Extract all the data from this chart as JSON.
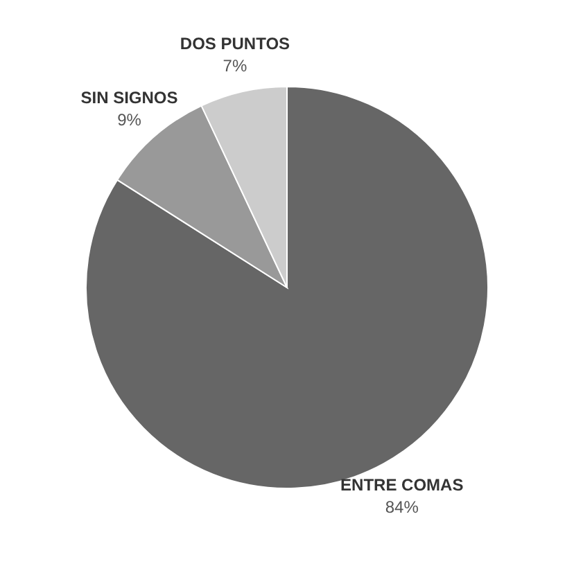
{
  "chart_data": {
    "type": "pie",
    "categories": [
      "ENTRE COMAS",
      "SIN SIGNOS",
      "DOS PUNTOS"
    ],
    "values": [
      84,
      9,
      7
    ],
    "colors": [
      "#666666",
      "#999999",
      "#cccccc"
    ],
    "value_labels": [
      "84%",
      "9%",
      "7%"
    ]
  }
}
